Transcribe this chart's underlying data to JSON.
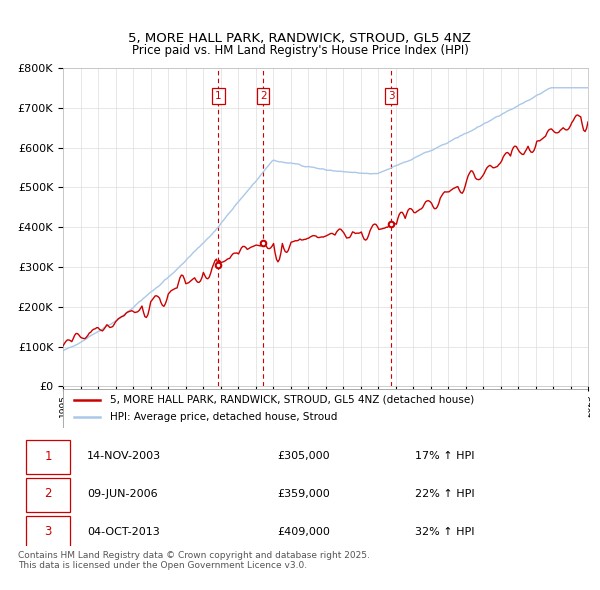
{
  "title": "5, MORE HALL PARK, RANDWICK, STROUD, GL5 4NZ",
  "subtitle": "Price paid vs. HM Land Registry's House Price Index (HPI)",
  "ylim": [
    0,
    800000
  ],
  "yticks": [
    0,
    100000,
    200000,
    300000,
    400000,
    500000,
    600000,
    700000,
    800000
  ],
  "ytick_labels": [
    "£0",
    "£100K",
    "£200K",
    "£300K",
    "£400K",
    "£500K",
    "£600K",
    "£700K",
    "£800K"
  ],
  "price_color": "#cc0000",
  "hpi_color": "#aac8e8",
  "vline_color": "#cc0000",
  "sale_dates": [
    2003.876,
    2006.44,
    2013.756
  ],
  "sale_prices": [
    305000,
    359000,
    409000
  ],
  "sale_labels": [
    "1",
    "2",
    "3"
  ],
  "legend_price_label": "5, MORE HALL PARK, RANDWICK, STROUD, GL5 4NZ (detached house)",
  "legend_hpi_label": "HPI: Average price, detached house, Stroud",
  "table_entries": [
    {
      "num": "1",
      "date": "14-NOV-2003",
      "price": "£305,000",
      "change": "17% ↑ HPI"
    },
    {
      "num": "2",
      "date": "09-JUN-2006",
      "price": "£359,000",
      "change": "22% ↑ HPI"
    },
    {
      "num": "3",
      "date": "04-OCT-2013",
      "price": "£409,000",
      "change": "32% ↑ HPI"
    }
  ],
  "footnote": "Contains HM Land Registry data © Crown copyright and database right 2025.\nThis data is licensed under the Open Government Licence v3.0.",
  "background_color": "#ffffff",
  "grid_color": "#dddddd"
}
